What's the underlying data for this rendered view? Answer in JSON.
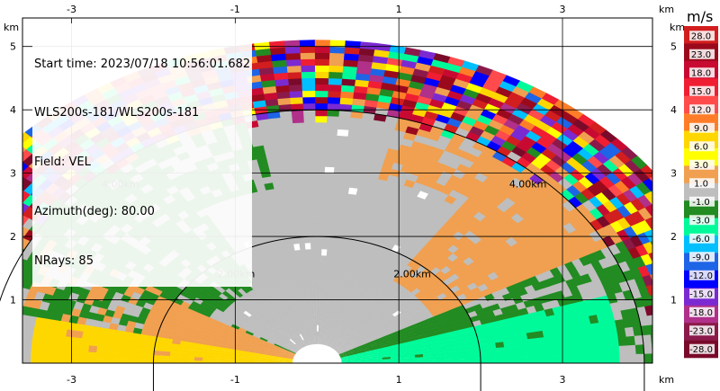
{
  "info": {
    "start_time": "Start time: 2023/07/18 10:56:01.682",
    "radar": "WLS200s-181/WLS200s-181",
    "field": "Field: VEL",
    "azimuth": "Azimuth(deg): 80.00",
    "nrays": "NRays: 85"
  },
  "chart_data": {
    "type": "heatmap",
    "projection": "RHI sector, elevation 0-180 deg",
    "x_unit": "km",
    "y_unit": "km",
    "xlim": [
      -3.6,
      4.1
    ],
    "ylim": [
      0,
      5.45
    ],
    "x_ticks": [
      "-3",
      "-1",
      "1",
      "3"
    ],
    "x_tick_values": [
      -3,
      -1,
      1,
      3
    ],
    "y_ticks": [
      "1",
      "2",
      "3",
      "4",
      "5"
    ],
    "y_tick_values": [
      1,
      2,
      3,
      4,
      5
    ],
    "axis_unit_label": "km",
    "max_range_km": 5.05,
    "grid": true,
    "range_rings": [
      {
        "radius_km": 2,
        "label": "2.00km"
      },
      {
        "radius_km": 4,
        "label": "4.00km"
      }
    ],
    "colorbar": {
      "unit": "m/s",
      "levels": [
        "28.0",
        "23.0",
        "18.0",
        "15.0",
        "12.0",
        "9.0",
        "6.0",
        "3.0",
        "1.0",
        "-1.0",
        "-3.0",
        "-6.0",
        "-9.0",
        "-12.0",
        "-15.0",
        "-18.0",
        "-23.0",
        "-28.0"
      ],
      "colors": [
        "#d21e1e",
        "#9a0a1c",
        "#c80a32",
        "#f01e32",
        "#ff4b4b",
        "#ff7d28",
        "#ffd700",
        "#ffff00",
        "#f0a050",
        "#bebebe",
        "#228b22",
        "#00fa9a",
        "#00bfff",
        "#1e64e6",
        "#0000ff",
        "#7b2ad2",
        "#b0308a",
        "#8b1a4a",
        "#7a0a2a"
      ]
    },
    "regions": [
      {
        "value_range": [
          1.0,
          3.0
        ],
        "color": "#f0a050",
        "az_deg": [
          0,
          50
        ],
        "range_km": [
          0.3,
          3.6
        ]
      },
      {
        "value_range": [
          -3.0,
          -6.0
        ],
        "color": "#00fa9a",
        "az_deg": [
          0,
          40
        ],
        "range_km": [
          0.3,
          3.7
        ]
      },
      {
        "value_range": [
          -1.0,
          1.0
        ],
        "color": "#bebebe",
        "az_deg": [
          40,
          140
        ],
        "range_km": [
          0.3,
          4.5
        ]
      },
      {
        "value_range": [
          -1.0,
          -3.0
        ],
        "color": "#228b22",
        "az_deg": [
          130,
          165
        ],
        "range_km": [
          0.5,
          4.6
        ]
      },
      {
        "value_range": [
          6.0,
          9.0
        ],
        "color": "#ffd700",
        "az_deg": [
          165,
          180
        ],
        "range_km": [
          0.3,
          3.5
        ]
      }
    ]
  }
}
